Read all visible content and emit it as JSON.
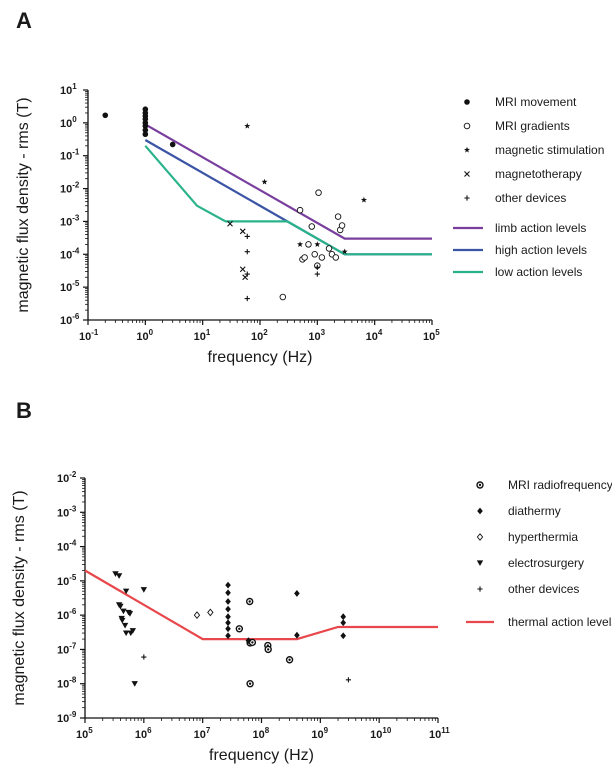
{
  "chart_data": [
    {
      "panel": "A",
      "type": "scatter",
      "xlabel": "frequency (Hz)",
      "ylabel": "magnetic flux density - rms (T)",
      "xscale": "log",
      "yscale": "log",
      "xlim": [
        0.1,
        100000
      ],
      "ylim": [
        1e-06,
        10
      ],
      "x_ticks": [
        {
          "base": "10",
          "exp": "-1",
          "value": 0.1
        },
        {
          "base": "10",
          "exp": "0",
          "value": 1
        },
        {
          "base": "10",
          "exp": "1",
          "value": 10
        },
        {
          "base": "10",
          "exp": "2",
          "value": 100
        },
        {
          "base": "10",
          "exp": "3",
          "value": 1000
        },
        {
          "base": "10",
          "exp": "4",
          "value": 10000
        },
        {
          "base": "10",
          "exp": "5",
          "value": 100000
        }
      ],
      "y_ticks": [
        {
          "base": "10",
          "exp": "-6",
          "value": 1e-06
        },
        {
          "base": "10",
          "exp": "-5",
          "value": 1e-05
        },
        {
          "base": "10",
          "exp": "-4",
          "value": 0.0001
        },
        {
          "base": "10",
          "exp": "-3",
          "value": 0.001
        },
        {
          "base": "10",
          "exp": "-2",
          "value": 0.01
        },
        {
          "base": "10",
          "exp": "-1",
          "value": 0.1
        },
        {
          "base": "10",
          "exp": "0",
          "value": 1
        },
        {
          "base": "10",
          "exp": "1",
          "value": 10
        }
      ],
      "legend_position": "right",
      "series": [
        {
          "name": "MRI movement",
          "marker": "filled-circle",
          "points": [
            [
              0.2,
              1.7
            ],
            [
              1,
              2.6
            ],
            [
              1,
              2.0
            ],
            [
              1,
              1.6
            ],
            [
              1,
              1.3
            ],
            [
              1,
              1.0
            ],
            [
              1,
              0.8
            ],
            [
              1,
              0.6
            ],
            [
              1,
              0.45
            ],
            [
              3,
              0.22
            ]
          ]
        },
        {
          "name": "MRI gradients",
          "marker": "open-circle",
          "points": [
            [
              250,
              5e-06
            ],
            [
              500,
              0.0022
            ],
            [
              550,
              7e-05
            ],
            [
              600,
              8e-05
            ],
            [
              700,
              0.0002
            ],
            [
              800,
              0.0007
            ],
            [
              900,
              0.0001
            ],
            [
              1000,
              4.5e-05
            ],
            [
              1050,
              0.0075
            ],
            [
              1200,
              8e-05
            ],
            [
              1600,
              0.00015
            ],
            [
              1800,
              0.0001
            ],
            [
              2100,
              8e-05
            ],
            [
              2300,
              0.0014
            ],
            [
              2500,
              0.00055
            ],
            [
              2700,
              0.00075
            ]
          ]
        },
        {
          "name": "magnetic stimulation",
          "marker": "star",
          "points": [
            [
              60,
              0.8
            ],
            [
              120,
              0.016
            ],
            [
              500,
              0.0002
            ],
            [
              1000,
              0.0002
            ],
            [
              3000,
              0.00012
            ],
            [
              6500,
              0.0045
            ]
          ]
        },
        {
          "name": "magnetotherapy",
          "marker": "x",
          "points": [
            [
              30,
              0.00085
            ],
            [
              50,
              0.0005
            ],
            [
              50,
              3.5e-05
            ],
            [
              55,
              2e-05
            ]
          ]
        },
        {
          "name": "other devices",
          "marker": "plus",
          "points": [
            [
              60,
              0.00035
            ],
            [
              60,
              0.00012
            ],
            [
              60,
              2.5e-05
            ],
            [
              60,
              4.5e-06
            ],
            [
              1000,
              2.5e-05
            ],
            [
              1000,
              4e-05
            ]
          ]
        }
      ],
      "lines": [
        {
          "name": "limb action levels",
          "color": "#7a3f9e",
          "points": [
            [
              1,
              0.9
            ],
            [
              3000,
              0.0003
            ],
            [
              100000,
              0.0003
            ]
          ]
        },
        {
          "name": "high action levels",
          "color": "#3b54a5",
          "points": [
            [
              1,
              0.3
            ],
            [
              3000,
              0.0001
            ],
            [
              100000,
              0.0001
            ]
          ]
        },
        {
          "name": "low action levels",
          "color": "#2ab38a",
          "points": [
            [
              1,
              0.2
            ],
            [
              8,
              0.003
            ],
            [
              25,
              0.001
            ],
            [
              300,
              0.001
            ],
            [
              3000,
              0.0001
            ],
            [
              100000,
              0.0001
            ]
          ]
        }
      ]
    },
    {
      "panel": "B",
      "type": "scatter",
      "xlabel": "frequency (Hz)",
      "ylabel": "magnetic flux density - rms (T)",
      "xscale": "log",
      "yscale": "log",
      "xlim": [
        100000,
        100000000000
      ],
      "ylim": [
        1e-09,
        0.01
      ],
      "x_ticks": [
        {
          "base": "10",
          "exp": "5",
          "value": 100000
        },
        {
          "base": "10",
          "exp": "6",
          "value": 1000000
        },
        {
          "base": "10",
          "exp": "7",
          "value": 10000000
        },
        {
          "base": "10",
          "exp": "8",
          "value": 100000000
        },
        {
          "base": "10",
          "exp": "9",
          "value": 1000000000
        },
        {
          "base": "10",
          "exp": "10",
          "value": 10000000000
        },
        {
          "base": "10",
          "exp": "11",
          "value": 100000000000
        }
      ],
      "y_ticks": [
        {
          "base": "10",
          "exp": "-9",
          "value": 1e-09
        },
        {
          "base": "10",
          "exp": "-8",
          "value": 1e-08
        },
        {
          "base": "10",
          "exp": "-7",
          "value": 1e-07
        },
        {
          "base": "10",
          "exp": "-6",
          "value": 1e-06
        },
        {
          "base": "10",
          "exp": "-5",
          "value": 1e-05
        },
        {
          "base": "10",
          "exp": "-4",
          "value": 0.0001
        },
        {
          "base": "10",
          "exp": "-3",
          "value": 0.001
        },
        {
          "base": "10",
          "exp": "-2",
          "value": 0.01
        }
      ],
      "legend_position": "right",
      "series": [
        {
          "name": "MRI radiofrequency",
          "marker": "dotted-circle",
          "points": [
            [
              42000000,
              4e-07
            ],
            [
              63000000,
              2.5e-06
            ],
            [
              64000000,
              1.55e-07
            ],
            [
              64000000,
              1e-08
            ],
            [
              70000000,
              1.6e-07
            ],
            [
              128000000,
              1.3e-07
            ],
            [
              130000000,
              1e-07
            ],
            [
              300000000,
              5e-08
            ]
          ]
        },
        {
          "name": "diathermy",
          "marker": "filled-diamond",
          "points": [
            [
              27000000,
              7.5e-06
            ],
            [
              27000000,
              4.5e-06
            ],
            [
              27000000,
              2.5e-06
            ],
            [
              27000000,
              1.5e-06
            ],
            [
              27000000,
              9e-07
            ],
            [
              27000000,
              6e-07
            ],
            [
              27000000,
              4e-07
            ],
            [
              27000000,
              2.5e-07
            ],
            [
              60000000,
              1.8e-07
            ],
            [
              400000000,
              4.3e-06
            ],
            [
              400000000,
              2.6e-07
            ],
            [
              2450000000,
              9e-07
            ],
            [
              2450000000,
              6e-07
            ],
            [
              2450000000,
              2.5e-07
            ]
          ]
        },
        {
          "name": "hyperthermia",
          "marker": "open-diamond",
          "points": [
            [
              8000000,
              1e-06
            ],
            [
              13500000,
              1.2e-06
            ]
          ]
        },
        {
          "name": "electrosurgery",
          "marker": "down-triangle",
          "points": [
            [
              330000,
              1.6e-05
            ],
            [
              380000,
              1.4e-05
            ],
            [
              380000,
              2e-06
            ],
            [
              400000,
              1.8e-06
            ],
            [
              420000,
              8e-07
            ],
            [
              430000,
              7e-07
            ],
            [
              450000,
              1.3e-06
            ],
            [
              480000,
              5e-07
            ],
            [
              500000,
              5e-06
            ],
            [
              500000,
              3e-07
            ],
            [
              550000,
              1.2e-06
            ],
            [
              580000,
              1.1e-06
            ],
            [
              600000,
              3e-07
            ],
            [
              650000,
              3.5e-07
            ],
            [
              700000,
              1e-08
            ],
            [
              1000000,
              5.5e-06
            ]
          ]
        },
        {
          "name": "other devices",
          "marker": "plus",
          "points": [
            [
              1000000,
              6e-08
            ],
            [
              3000000000,
              1.3e-08
            ]
          ]
        }
      ],
      "lines": [
        {
          "name": "thermal action levels",
          "color": "#e8474b",
          "points": [
            [
              100000,
              2e-05
            ],
            [
              10000000,
              2e-07
            ],
            [
              400000000,
              2e-07
            ],
            [
              2000000000,
              4.5e-07
            ],
            [
              100000000000,
              4.5e-07
            ]
          ]
        }
      ]
    }
  ]
}
